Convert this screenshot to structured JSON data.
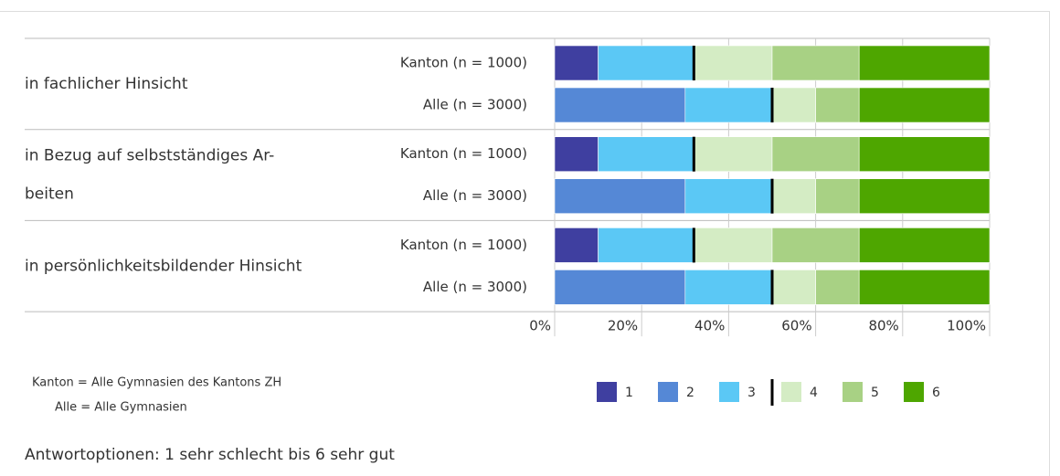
{
  "chart_data": {
    "type": "stacked-bar",
    "groups": [
      [
        "in fachlicher Hinsicht"
      ],
      [
        "in Bezug auf selbstständiges Ar-",
        "beiten"
      ],
      [
        "in persönlichkeitsbildender Hinsicht"
      ]
    ],
    "categories": [
      "Kanton (n = 1000)",
      "Alle (n = 3000)",
      "Kanton (n = 1000)",
      "Alle (n = 3000)",
      "Kanton (n = 1000)",
      "Alle (n = 3000)"
    ],
    "series": [
      {
        "name": "1",
        "color": "#3f3fa0",
        "values": [
          10,
          0,
          10,
          0,
          10,
          0
        ]
      },
      {
        "name": "2",
        "color": "#5588d6",
        "values": [
          0,
          30,
          0,
          30,
          0,
          30
        ]
      },
      {
        "name": "3",
        "color": "#5bc8f5",
        "values": [
          22,
          20,
          22,
          20,
          22,
          20
        ]
      },
      {
        "name": "4",
        "color": "#d4ecc4",
        "values": [
          18,
          10,
          18,
          10,
          18,
          10
        ]
      },
      {
        "name": "5",
        "color": "#a8d184",
        "values": [
          20,
          10,
          20,
          10,
          20,
          10
        ]
      },
      {
        "name": "6",
        "color": "#4ea600",
        "values": [
          30,
          30,
          30,
          30,
          30,
          30
        ]
      }
    ],
    "xlim": [
      0,
      100
    ],
    "xticks": [
      {
        "value": 0,
        "label": "0%"
      },
      {
        "value": 20,
        "label": "20%"
      },
      {
        "value": 40,
        "label": "40%"
      },
      {
        "value": 60,
        "label": "60%"
      },
      {
        "value": 80,
        "label": "80%"
      },
      {
        "value": 100,
        "label": "100%"
      }
    ],
    "notes": [
      "Kanton = Alle Gymnasien des Kantons ZH",
      "Alle = Alle Gymnasien"
    ],
    "caption": "Antwortoptionen: 1 sehr schlecht bis 6 sehr gut"
  }
}
